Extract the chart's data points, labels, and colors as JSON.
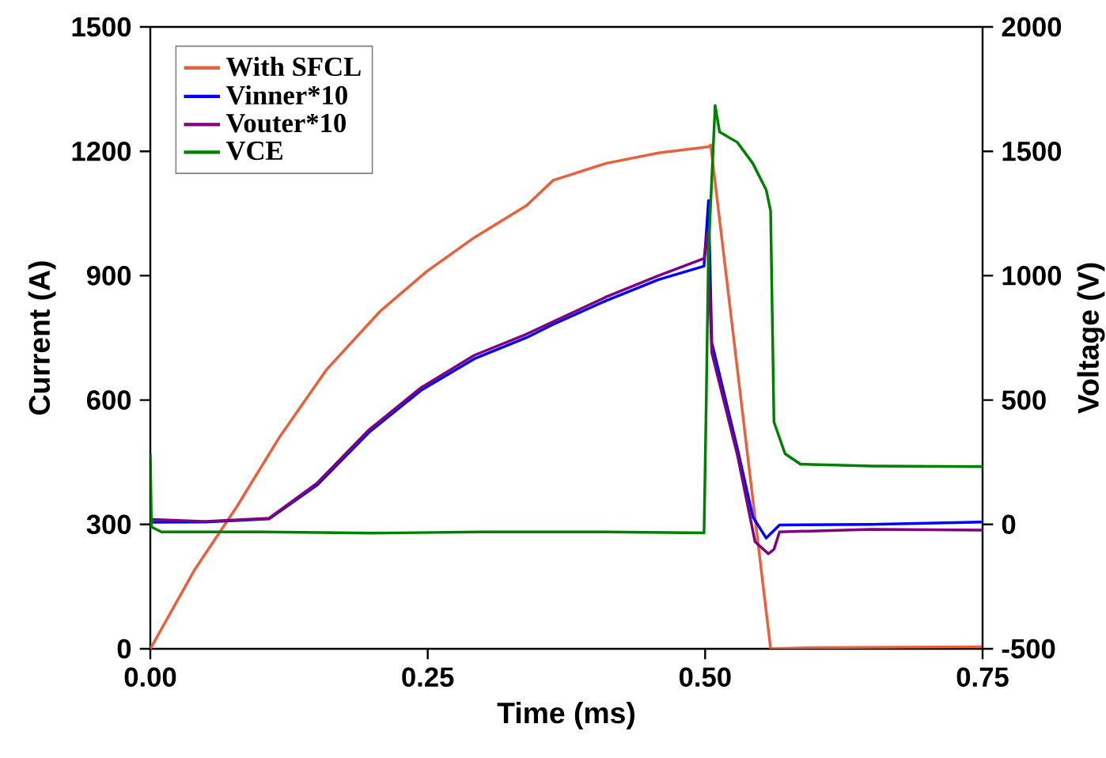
{
  "chart_data": {
    "type": "line",
    "xlabel": "Time (ms)",
    "ylabel": "Current (A)",
    "y2label": "Voltage (V)",
    "xlim": [
      0,
      0.75
    ],
    "ylim": [
      0,
      1500
    ],
    "y2lim": [
      -500,
      2000
    ],
    "xticks": [
      {
        "value": 0,
        "label": "0.00"
      },
      {
        "value": 0.25,
        "label": "0.25"
      },
      {
        "value": 0.5,
        "label": "0.50"
      },
      {
        "value": 0.75,
        "label": "0.75"
      }
    ],
    "yticks": [
      0,
      300,
      600,
      900,
      1200,
      1500
    ],
    "y2ticks": [
      -500,
      0,
      500,
      1000,
      1500,
      2000
    ],
    "legend": "top left",
    "series": [
      {
        "name": "With SFCL",
        "color": "#e8603c",
        "x": [
          0,
          0.04,
          0.078,
          0.116,
          0.159,
          0.207,
          0.249,
          0.292,
          0.339,
          0.363,
          0.411,
          0.458,
          0.503,
          0.505,
          0.559,
          0.6,
          0.75
        ],
        "values": [
          0,
          191,
          343,
          509,
          674,
          814,
          910,
          992,
          1069,
          1130,
          1171,
          1196,
          1211,
          1215,
          0,
          3,
          5
        ]
      },
      {
        "name": "Vinner*10",
        "color": "#0000ff",
        "axis": "y2",
        "x": [
          0,
          0.002,
          0.05,
          0.107,
          0.15,
          0.197,
          0.244,
          0.292,
          0.339,
          0.363,
          0.411,
          0.458,
          0.499,
          0.503,
          0.506,
          0.529,
          0.543,
          0.555,
          0.567,
          0.65,
          0.75
        ],
        "values": [
          9,
          9,
          10,
          22,
          157,
          370,
          539,
          666,
          751,
          804,
          900,
          984,
          1038,
          1302,
          730,
          306,
          30,
          -55,
          -2,
          0,
          10
        ]
      },
      {
        "name": "Vouter*10",
        "color": "#800080",
        "axis": "y2",
        "x": [
          0,
          0.002,
          0.05,
          0.107,
          0.15,
          0.197,
          0.244,
          0.292,
          0.339,
          0.363,
          0.411,
          0.458,
          0.499,
          0.502,
          0.506,
          0.529,
          0.545,
          0.557,
          0.562,
          0.567,
          0.65,
          0.75
        ],
        "values": [
          20,
          20,
          12,
          25,
          165,
          380,
          550,
          680,
          765,
          815,
          915,
          1000,
          1069,
          1175,
          690,
          280,
          -70,
          -118,
          -100,
          -30,
          -20,
          -23
        ]
      },
      {
        "name": "VCE",
        "color": "#008000",
        "axis": "y2",
        "x": [
          0,
          0.001,
          0.01,
          0.1,
          0.2,
          0.3,
          0.4,
          0.499,
          0.501,
          0.503,
          0.509,
          0.513,
          0.529,
          0.543,
          0.555,
          0.559,
          0.562,
          0.572,
          0.586,
          0.65,
          0.75
        ],
        "values": [
          284,
          -10,
          -30,
          -30,
          -35,
          -30,
          -30,
          -34,
          500,
          1100,
          1684,
          1578,
          1536,
          1451,
          1345,
          1260,
          412,
          284,
          242,
          235,
          232
        ]
      }
    ]
  }
}
